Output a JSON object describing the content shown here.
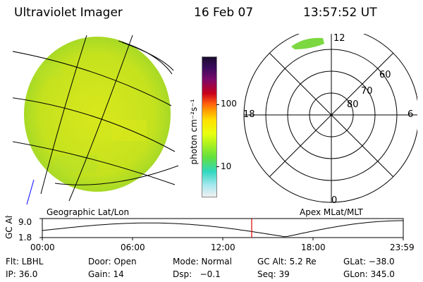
{
  "title": {
    "instrument": "Ultraviolet Imager",
    "date": "16 Feb 07",
    "time": "13:57:52 UT"
  },
  "geo_panel": {
    "label": "Geographic Lat/Lon"
  },
  "colorbar": {
    "unit_label": "photon cm⁻²s⁻¹",
    "ticks": [
      {
        "label": "100",
        "value": 100
      },
      {
        "label": "10",
        "value": 10
      }
    ],
    "scale": "log"
  },
  "polar_plot": {
    "label": "Apex MLat/MLT",
    "mlt_labels": {
      "top": "12",
      "bottom": "0",
      "left": "18",
      "right": "6"
    },
    "lat_labels": [
      "60",
      "70",
      "80"
    ]
  },
  "altitude_plot": {
    "ylabel": "GC Alt",
    "ytick_top": "9.0",
    "ytick_bottom": "1.8",
    "xticks": [
      "00:00",
      "06:00",
      "12:00",
      "18:00",
      "23:59"
    ],
    "current_time_marker": "13:57:52",
    "colors": {
      "marker": "#e00000",
      "curve": "#000000"
    }
  },
  "info": {
    "row1": {
      "filter": "Flt: LBHL",
      "door": "Door: Open",
      "mode": "Mode: Normal",
      "gc_alt": "GC Alt: 5.2 Re",
      "glat": "GLat: −38.0"
    },
    "row2": {
      "ip": "IP: 36.0",
      "gain": "Gain: 14",
      "dsp": "Dsp:   −0.1",
      "seq": "Seq: 39",
      "glon": "GLon: 345.0"
    }
  }
}
